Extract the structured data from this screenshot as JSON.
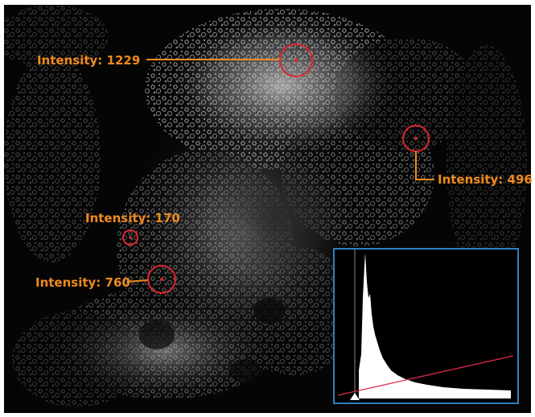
{
  "measurements": [
    {
      "label": "Intensity: 1229"
    },
    {
      "label": "Intensity: 496"
    },
    {
      "label": "Intensity: 170"
    },
    {
      "label": "Intensity: 760"
    }
  ],
  "colors": {
    "background": "#050505",
    "label_text": "#f08a1e",
    "leader_line": "#f08a1e",
    "marker_circle": "#e0262e",
    "inset_border": "#2d7fc0",
    "histogram_fill": "#ffffff",
    "curve_line": "#e0264a"
  },
  "histogram": {
    "type": "histogram",
    "has_display_curve": true,
    "has_black_point_marker": true
  }
}
